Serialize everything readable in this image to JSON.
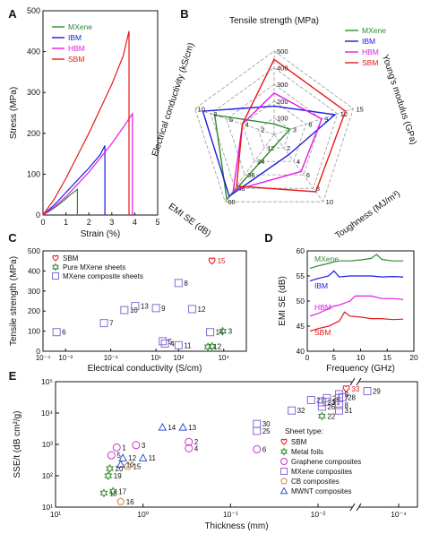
{
  "panels": {
    "A": "A",
    "B": "B",
    "C": "C",
    "D": "D",
    "E": "E"
  },
  "colors": {
    "MXene": "#2e8b2e",
    "IBM": "#1a1ae6",
    "HBM": "#e619e6",
    "SBM": "#e61919",
    "metal": "#2e8b2e",
    "graphene": "#cc33cc",
    "mxene_comp": "#8a6ad6",
    "cb": "#cc8844",
    "mwnt": "#3355cc",
    "sbm_e": "#e61919"
  },
  "chart_data": [
    {
      "id": "A",
      "type": "line",
      "title": "",
      "xlabel": "Strain (%)",
      "ylabel": "Stress (MPa)",
      "xlim": [
        0,
        5
      ],
      "ylim": [
        0,
        500
      ],
      "xticks": [
        "0",
        "1",
        "2",
        "3",
        "4",
        "5"
      ],
      "yticks": [
        "0",
        "100",
        "200",
        "300",
        "400",
        "500"
      ],
      "legend_position": "top-left",
      "series": [
        {
          "name": "MXene",
          "color": "#2e8b2e",
          "x": [
            0,
            0.3,
            0.6,
            0.9,
            1.2,
            1.5,
            1.5
          ],
          "y": [
            0,
            10,
            22,
            35,
            50,
            63,
            0
          ]
        },
        {
          "name": "IBM",
          "color": "#1a1ae6",
          "x": [
            0,
            0.5,
            1.0,
            1.5,
            2.0,
            2.5,
            2.7,
            2.7
          ],
          "y": [
            0,
            25,
            55,
            85,
            115,
            148,
            170,
            0
          ]
        },
        {
          "name": "HBM",
          "color": "#e619e6",
          "x": [
            0,
            0.5,
            1.0,
            1.5,
            2.0,
            2.5,
            3.0,
            3.5,
            3.9,
            3.9
          ],
          "y": [
            0,
            20,
            45,
            75,
            105,
            140,
            175,
            215,
            248,
            0
          ]
        },
        {
          "name": "SBM",
          "color": "#e61919",
          "x": [
            0,
            0.5,
            1.0,
            1.5,
            2.0,
            2.5,
            3.0,
            3.5,
            3.75,
            3.75
          ],
          "y": [
            0,
            40,
            90,
            145,
            200,
            260,
            320,
            390,
            450,
            0
          ]
        }
      ]
    },
    {
      "id": "B",
      "type": "radar",
      "title": "",
      "axes": [
        {
          "name": "Tensile strength (MPa)",
          "max": 500,
          "ticks": [
            "100",
            "200",
            "300",
            "400",
            "500"
          ]
        },
        {
          "name": "Young's modulus (GPa)",
          "max": 15,
          "ticks": [
            "3",
            "6",
            "9",
            "12",
            "15"
          ]
        },
        {
          "name": "Toughness (MJ/m³)",
          "max": 10,
          "ticks": [
            "2",
            "4",
            "6",
            "8",
            "10"
          ]
        },
        {
          "name": "EMI SE (dB)",
          "max": 60,
          "ticks": [
            "12",
            "24",
            "36",
            "48",
            "60"
          ]
        },
        {
          "name": "Electrical conductivity (kS/cm)",
          "max": 10,
          "ticks": [
            "2",
            "4",
            "6",
            "8",
            "10"
          ]
        }
      ],
      "legend_position": "top-right",
      "series": [
        {
          "name": "MXene",
          "color": "#2e8b2e",
          "values": [
            63,
            3,
            1,
            58,
            7.5
          ]
        },
        {
          "name": "IBM",
          "color": "#1a1ae6",
          "values": [
            170,
            11.5,
            3,
            55,
            9
          ]
        },
        {
          "name": "HBM",
          "color": "#e619e6",
          "values": [
            248,
            9,
            5.5,
            50,
            4
          ]
        },
        {
          "name": "SBM",
          "color": "#e61919",
          "values": [
            450,
            13.5,
            8.5,
            46,
            4
          ]
        }
      ]
    },
    {
      "id": "C",
      "type": "scatter",
      "title": "",
      "xlabel": "Electrical conductivity (S/cm)",
      "ylabel": "Tensile strength (MPa)",
      "xscale": "log",
      "xlim": [
        0.0001,
        100000
      ],
      "ylim": [
        0,
        500
      ],
      "xticks": [
        "10⁻⁴",
        "10⁻³",
        "10⁻¹",
        "10¹",
        "10²",
        "10⁴"
      ],
      "yticks": [
        "0",
        "100",
        "200",
        "300",
        "400",
        "500"
      ],
      "legend_position": "top-left",
      "series": [
        {
          "name": "SBM",
          "marker": "heart",
          "color": "#e61919",
          "points": [
            {
              "x": 3000,
              "y": 450,
              "label": "15"
            }
          ]
        },
        {
          "name": "Pure MXene sheets",
          "marker": "star",
          "color": "#2e8b2e",
          "points": [
            {
              "x": 2000,
              "y": 22,
              "label": "1"
            },
            {
              "x": 3000,
              "y": 25,
              "label": "2"
            },
            {
              "x": 9000,
              "y": 100,
              "label": "3"
            }
          ]
        },
        {
          "name": "MXene composite sheets",
          "marker": "square",
          "color": "#8a6ad6",
          "points": [
            {
              "x": 0.0004,
              "y": 95,
              "label": "6"
            },
            {
              "x": 0.05,
              "y": 140,
              "label": "7"
            },
            {
              "x": 0.4,
              "y": 205,
              "label": "10"
            },
            {
              "x": 1.2,
              "y": 225,
              "label": "13"
            },
            {
              "x": 10,
              "y": 215,
              "label": "9"
            },
            {
              "x": 100,
              "y": 340,
              "label": "8"
            },
            {
              "x": 400,
              "y": 210,
              "label": "12"
            },
            {
              "x": 20,
              "y": 50,
              "label": "5"
            },
            {
              "x": 25,
              "y": 38,
              "label": "4"
            },
            {
              "x": 100,
              "y": 30,
              "label": "11"
            },
            {
              "x": 2500,
              "y": 95,
              "label": "14"
            }
          ]
        }
      ]
    },
    {
      "id": "D",
      "type": "line",
      "title": "",
      "xlabel": "Frequency (GHz)",
      "ylabel": "EMI SE (dB)",
      "xlim": [
        0,
        20
      ],
      "ylim": [
        40,
        60
      ],
      "xticks": [
        "0",
        "5",
        "10",
        "15",
        "20"
      ],
      "yticks": [
        "40",
        "45",
        "50",
        "55",
        "60"
      ],
      "series": [
        {
          "name": "MXene",
          "color": "#2e8b2e",
          "x": [
            0.5,
            2,
            4,
            5,
            6,
            8,
            10,
            12,
            13,
            14,
            16,
            18
          ],
          "y": [
            56.5,
            57,
            57.5,
            57.8,
            58,
            58,
            58.2,
            58.5,
            59.3,
            58.3,
            58,
            58
          ]
        },
        {
          "name": "IBM",
          "color": "#1a1ae6",
          "x": [
            0.5,
            2,
            4,
            5,
            6,
            8,
            10,
            12,
            14,
            16,
            18
          ],
          "y": [
            54,
            54.5,
            55,
            56,
            54.8,
            55,
            55,
            55,
            54.8,
            54.9,
            54.8
          ]
        },
        {
          "name": "HBM",
          "color": "#e619e6",
          "x": [
            0.5,
            2,
            4,
            5,
            6,
            8,
            9,
            10,
            12,
            14,
            16,
            18
          ],
          "y": [
            47,
            47.5,
            48.5,
            49,
            49.2,
            50,
            51,
            51,
            51,
            50.5,
            50.5,
            50.3
          ]
        },
        {
          "name": "SBM",
          "color": "#e61919",
          "x": [
            0.5,
            2,
            4,
            5,
            6,
            7,
            8,
            10,
            12,
            14,
            16,
            18
          ],
          "y": [
            44,
            44.5,
            45,
            45.5,
            46,
            47.8,
            47,
            46.8,
            46.5,
            46.5,
            46.3,
            46.4
          ]
        }
      ]
    },
    {
      "id": "E",
      "type": "scatter",
      "title": "",
      "xlabel": "Thickness (mm)",
      "ylabel": "SSE/t (dB cm²/g)",
      "xscale": "log-reversed",
      "yscale": "log",
      "xlim": [
        10,
        0.0001
      ],
      "ylim": [
        10,
        100000
      ],
      "xticks": [
        "10¹",
        "10⁰",
        "10⁻¹",
        "10⁻²",
        "10⁻⁴"
      ],
      "yticks": [
        "10¹",
        "10²",
        "10³",
        "10⁴",
        "10⁵"
      ],
      "legend_title": "Sheet type:",
      "legend_position": "center-right",
      "series": [
        {
          "name": "SBM",
          "marker": "heart",
          "color": "#e61919",
          "points": [
            {
              "x": 0.002,
              "y": 60000,
              "label": "33"
            }
          ]
        },
        {
          "name": "Metal foils",
          "marker": "star",
          "color": "#2e8b2e",
          "points": [
            {
              "x": 2.8,
              "y": 28,
              "label": "18"
            },
            {
              "x": 2.2,
              "y": 32,
              "label": "17"
            },
            {
              "x": 2.5,
              "y": 100,
              "label": "19"
            },
            {
              "x": 2.4,
              "y": 170,
              "label": "20"
            },
            {
              "x": 0.008,
              "y": 8000,
              "label": "22"
            }
          ]
        },
        {
          "name": "Graphene composites",
          "marker": "circle",
          "color": "#cc33cc",
          "points": [
            {
              "x": 2.0,
              "y": 800,
              "label": "1"
            },
            {
              "x": 2.3,
              "y": 450,
              "label": "5"
            },
            {
              "x": 1.2,
              "y": 950,
              "label": "3"
            },
            {
              "x": 0.3,
              "y": 1200,
              "label": "2"
            },
            {
              "x": 0.3,
              "y": 750,
              "label": "4"
            },
            {
              "x": 0.05,
              "y": 700,
              "label": "6"
            }
          ]
        },
        {
          "name": "MXene composites",
          "marker": "square",
          "color": "#8a6ad6",
          "points": [
            {
              "x": 0.05,
              "y": 4500,
              "label": "30"
            },
            {
              "x": 0.05,
              "y": 2700,
              "label": "25"
            },
            {
              "x": 0.02,
              "y": 12000,
              "label": "32"
            },
            {
              "x": 0.012,
              "y": 26000,
              "label": "27"
            },
            {
              "x": 0.008,
              "y": 22000,
              "label": "23"
            },
            {
              "x": 0.008,
              "y": 16000,
              "label": "26"
            },
            {
              "x": 0.006,
              "y": 30000,
              "label": "24"
            },
            {
              "x": 0.006,
              "y": 23000,
              "label": "21"
            },
            {
              "x": 0.003,
              "y": 40000,
              "label": "9"
            },
            {
              "x": 0.003,
              "y": 30000,
              "label": "7"
            },
            {
              "x": 0.0025,
              "y": 32000,
              "label": "28"
            },
            {
              "x": 0.003,
              "y": 18000,
              "label": "8"
            },
            {
              "x": 0.003,
              "y": 12000,
              "label": "31"
            },
            {
              "x": 0.0006,
              "y": 50000,
              "label": "29"
            }
          ]
        },
        {
          "name": "CB composites",
          "marker": "pentagon",
          "color": "#cc8844",
          "points": [
            {
              "x": 1.8,
              "y": 15,
              "label": "16"
            },
            {
              "x": 1.5,
              "y": 200,
              "label": "15"
            }
          ]
        },
        {
          "name": "MWNT composites",
          "marker": "triangle",
          "color": "#3355cc",
          "points": [
            {
              "x": 1.8,
              "y": 230,
              "label": "10"
            },
            {
              "x": 1.7,
              "y": 370,
              "label": "12"
            },
            {
              "x": 1.0,
              "y": 370,
              "label": "11"
            },
            {
              "x": 0.6,
              "y": 3500,
              "label": "14"
            },
            {
              "x": 0.35,
              "y": 3500,
              "label": "13"
            }
          ]
        }
      ]
    }
  ]
}
